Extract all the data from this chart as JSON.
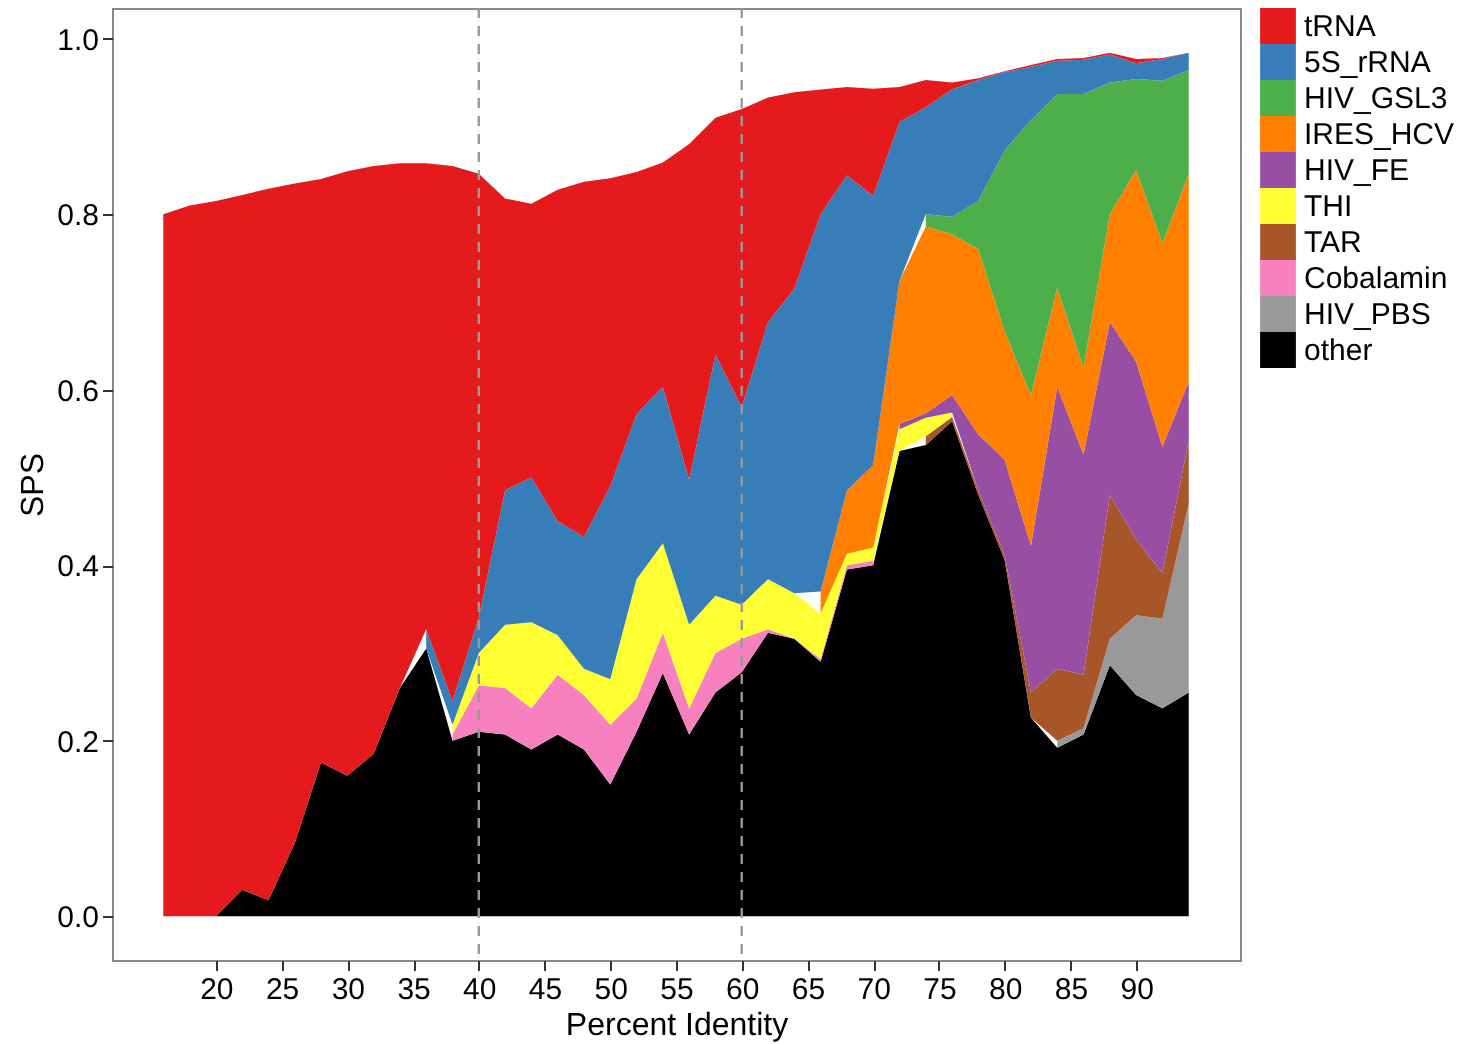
{
  "chart_data": {
    "type": "area",
    "stacked": true,
    "xlabel": "Percent Identity",
    "ylabel": "SPS",
    "legend": "right",
    "grid": false,
    "x": [
      16,
      18,
      20,
      22,
      24,
      26,
      28,
      30,
      32,
      34,
      36,
      38,
      40,
      42,
      44,
      46,
      48,
      50,
      52,
      54,
      56,
      58,
      60,
      62,
      64,
      66,
      68,
      70,
      72,
      74,
      76,
      78,
      80,
      82,
      84,
      86,
      88,
      90,
      92,
      94
    ],
    "xlim": [
      12.1,
      97.9
    ],
    "xticks": [
      20,
      25,
      30,
      35,
      40,
      45,
      50,
      55,
      60,
      65,
      70,
      75,
      80,
      85,
      90
    ],
    "ylim": [
      -0.05,
      1.035
    ],
    "yticks": [
      {
        "value": 0,
        "label": "0.0"
      },
      {
        "value": 0.2,
        "label": "0.2"
      },
      {
        "value": 0.4,
        "label": "0.4"
      },
      {
        "value": 0.6,
        "label": "0.6"
      },
      {
        "value": 0.8,
        "label": "0.8"
      },
      {
        "value": 1,
        "label": "1.0"
      }
    ],
    "ref_lines": [
      {
        "axis": "x",
        "value": 40,
        "line_style": "dashed",
        "color": "#999999"
      },
      {
        "axis": "x",
        "value": 60,
        "line_style": "dashed",
        "color": "#999999"
      }
    ],
    "series": [
      {
        "name": "other",
        "color": "#000000",
        "values": [
          0,
          0,
          0,
          0.03,
          0.018,
          0.083,
          0.175,
          0.16,
          0.185,
          0.26,
          0.305,
          0.2,
          0.21,
          0.207,
          0.19,
          0.207,
          0.19,
          0.15,
          0.21,
          0.277,
          0.207,
          0.255,
          0.278,
          0.323,
          0.316,
          0.29,
          0.395,
          0.4,
          0.53,
          0.537,
          0.564,
          0.48,
          0.406,
          0.226,
          0.192,
          0.207,
          0.286,
          0.252,
          0.237,
          0.255
        ]
      },
      {
        "name": "HIV_PBS",
        "color": "#999999",
        "values": [
          null,
          null,
          null,
          null,
          null,
          null,
          null,
          null,
          null,
          null,
          null,
          null,
          null,
          null,
          null,
          null,
          null,
          null,
          null,
          null,
          null,
          null,
          null,
          null,
          null,
          null,
          null,
          null,
          null,
          null,
          null,
          null,
          null,
          null,
          0.008,
          0.007,
          0.03,
          0.091,
          0.102,
          0.215
        ]
      },
      {
        "name": "Cobalamin",
        "color": "#f781bf",
        "values": [
          null,
          null,
          null,
          null,
          null,
          null,
          null,
          null,
          null,
          null,
          null,
          0.007,
          0.053,
          0.053,
          0.047,
          0.068,
          0.062,
          0.068,
          0.038,
          0.046,
          0.03,
          0.045,
          0.038,
          0.004,
          0,
          0.003,
          0.005,
          0.005,
          null,
          null,
          null,
          null,
          null,
          null,
          null,
          null,
          null,
          null,
          null,
          null
        ]
      },
      {
        "name": "TAR",
        "color": "#a65628",
        "values": [
          null,
          null,
          null,
          null,
          null,
          null,
          null,
          null,
          null,
          null,
          null,
          null,
          null,
          null,
          null,
          null,
          null,
          null,
          null,
          null,
          null,
          null,
          null,
          null,
          null,
          null,
          null,
          null,
          null,
          0.01,
          0.005,
          0.005,
          0.005,
          0.029,
          0.082,
          0.061,
          0.164,
          0.086,
          0.052,
          0.072
        ]
      },
      {
        "name": "THI",
        "color": "#ffff33",
        "values": [
          null,
          null,
          null,
          null,
          null,
          null,
          null,
          null,
          null,
          null,
          null,
          0.011,
          0.037,
          0.072,
          0.098,
          0.045,
          0.03,
          0.052,
          0.136,
          0.102,
          0.095,
          0.065,
          0.039,
          0.057,
          0.052,
          0.052,
          0.013,
          0.015,
          0.025,
          0.021,
          0.005,
          null,
          null,
          null,
          null,
          null,
          null,
          null,
          null,
          null
        ]
      },
      {
        "name": "HIV_FE",
        "color": "#984ea3",
        "values": [
          null,
          null,
          null,
          null,
          null,
          null,
          null,
          null,
          null,
          null,
          null,
          null,
          null,
          null,
          null,
          null,
          null,
          null,
          null,
          null,
          null,
          null,
          null,
          null,
          null,
          null,
          null,
          null,
          0.006,
          0.005,
          0.02,
          0.064,
          0.109,
          0.167,
          0.321,
          0.251,
          0.197,
          0.203,
          0.144,
          0.067
        ]
      },
      {
        "name": "IRES_HCV",
        "color": "#ff7f00",
        "values": [
          null,
          null,
          null,
          null,
          null,
          null,
          null,
          null,
          null,
          null,
          null,
          null,
          null,
          null,
          null,
          null,
          null,
          null,
          null,
          null,
          null,
          null,
          null,
          null,
          null,
          0.025,
          0.072,
          0.094,
          0.163,
          0.213,
          0.183,
          0.211,
          0.146,
          0.172,
          0.113,
          0.099,
          0.123,
          0.218,
          0.232,
          0.237
        ]
      },
      {
        "name": "HIV_GSL3",
        "color": "#4daf4a",
        "values": [
          null,
          null,
          null,
          null,
          null,
          null,
          null,
          null,
          null,
          null,
          null,
          null,
          null,
          null,
          null,
          null,
          null,
          null,
          null,
          null,
          null,
          null,
          null,
          null,
          null,
          null,
          null,
          null,
          null,
          0.014,
          0.02,
          0.055,
          0.207,
          0.313,
          0.221,
          0.312,
          0.15,
          0.104,
          0.185,
          0.118
        ]
      },
      {
        "name": "5S_rRNA",
        "color": "#377eb8",
        "values": [
          null,
          null,
          null,
          null,
          null,
          null,
          null,
          null,
          null,
          null,
          0.022,
          0.027,
          0.04,
          0.153,
          0.165,
          0.13,
          0.15,
          0.22,
          0.188,
          0.178,
          0.165,
          0.275,
          0.225,
          0.293,
          0.347,
          0.43,
          0.359,
          0.307,
          0.181,
          0.122,
          0.145,
          0.138,
          0.089,
          0.061,
          0.038,
          0.039,
          0.032,
          0.018,
          0.025,
          0.02
        ]
      },
      {
        "name": "tRNA",
        "color": "#e41a1c",
        "values": [
          0.8,
          0.81,
          0.815,
          0.792,
          0.811,
          0.752,
          0.665,
          0.689,
          0.67,
          0.598,
          0.531,
          0.61,
          0.506,
          0.333,
          0.312,
          0.378,
          0.405,
          0.351,
          0.276,
          0.256,
          0.383,
          0.27,
          0.34,
          0.256,
          0.224,
          0.142,
          0.101,
          0.122,
          0.04,
          0.031,
          0.008,
          0.002,
          0.001,
          0.002,
          0.002,
          0.002,
          0.002,
          0.005,
          0.001,
          0
        ]
      }
    ]
  }
}
